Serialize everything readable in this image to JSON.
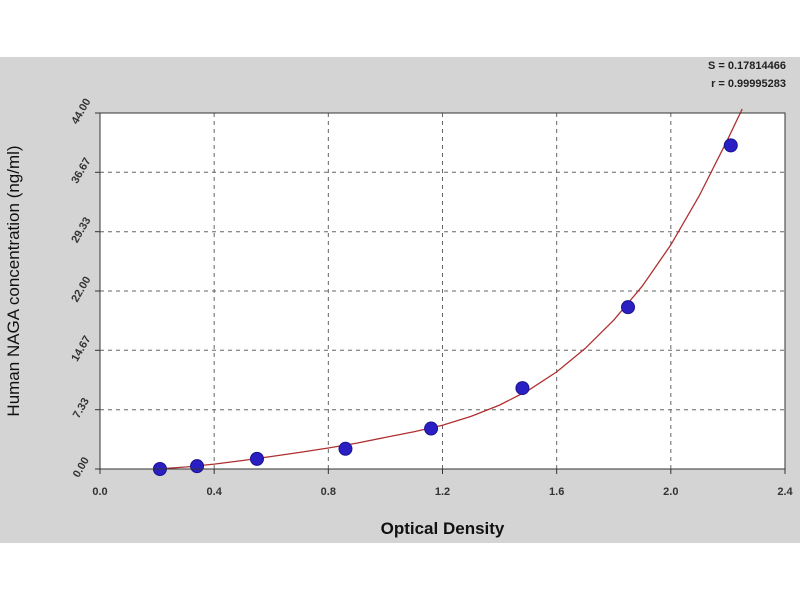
{
  "stats": {
    "s_label": "S = 0.17814466",
    "r_label": "r = 0.99995283"
  },
  "chart_data": {
    "type": "scatter",
    "xlabel": "Optical Density",
    "ylabel": "Human NAGA concentration (ng/ml)",
    "xlim": [
      0.0,
      2.4
    ],
    "ylim": [
      0.0,
      44.0
    ],
    "x_ticks": [
      "0.0",
      "0.4",
      "0.8",
      "1.2",
      "1.6",
      "2.0",
      "2.4"
    ],
    "x_tick_values": [
      0.0,
      0.4,
      0.8,
      1.2,
      1.6,
      2.0,
      2.4
    ],
    "y_ticks": [
      "0.00",
      "7.33",
      "14.67",
      "22.00",
      "29.33",
      "36.67",
      "44.00"
    ],
    "y_tick_values": [
      0.0,
      7.33,
      14.67,
      22.0,
      29.33,
      36.67,
      44.0
    ],
    "grid": true,
    "series": [
      {
        "kind": "points",
        "color": "#2a1fc2",
        "x": [
          0.21,
          0.34,
          0.55,
          0.86,
          1.16,
          1.48,
          1.85,
          2.21
        ],
        "y": [
          0.0,
          0.35,
          1.25,
          2.5,
          5.0,
          10.0,
          20.0,
          40.0
        ]
      },
      {
        "kind": "fit-curve",
        "color": "#b03030",
        "x": [
          0.1,
          0.2,
          0.3,
          0.4,
          0.5,
          0.6,
          0.7,
          0.8,
          0.9,
          1.0,
          1.1,
          1.2,
          1.3,
          1.4,
          1.5,
          1.6,
          1.7,
          1.8,
          1.9,
          2.0,
          2.1,
          2.2,
          2.25
        ],
        "y": [
          -0.1,
          0.0,
          0.25,
          0.6,
          1.05,
          1.55,
          2.05,
          2.6,
          3.2,
          3.9,
          4.6,
          5.4,
          6.5,
          7.9,
          9.7,
          12.0,
          14.9,
          18.4,
          22.6,
          27.7,
          33.8,
          40.8,
          44.5
        ]
      }
    ]
  }
}
